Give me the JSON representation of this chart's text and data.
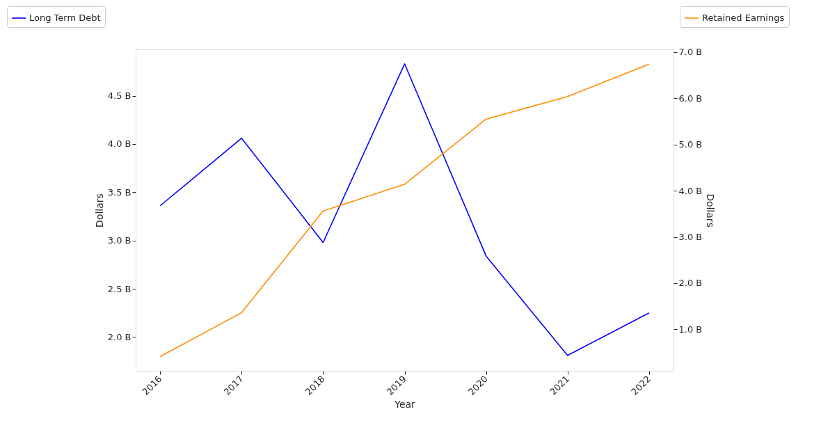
{
  "chart_data": {
    "type": "line",
    "xlabel": "Year",
    "ylabel": "Dollars",
    "y2label": "Dollars",
    "x": [
      2016,
      2017,
      2018,
      2019,
      2020,
      2021,
      2022
    ],
    "xlim": [
      2015.7,
      2022.3
    ],
    "xticks": [
      2016,
      2017,
      2018,
      2019,
      2020,
      2021,
      2022
    ],
    "ylim": [
      1.65,
      4.98
    ],
    "yticks": [
      {
        "value": 2.0,
        "label": "2.0 B"
      },
      {
        "value": 2.5,
        "label": "2.5 B"
      },
      {
        "value": 3.0,
        "label": "3.0 B"
      },
      {
        "value": 3.5,
        "label": "3.5 B"
      },
      {
        "value": 4.0,
        "label": "4.0 B"
      },
      {
        "value": 4.5,
        "label": "4.5 B"
      }
    ],
    "y2lim": [
      0.1,
      7.06
    ],
    "y2ticks": [
      {
        "value": 1.0,
        "label": "1.0 B"
      },
      {
        "value": 2.0,
        "label": "2.0 B"
      },
      {
        "value": 3.0,
        "label": "3.0 B"
      },
      {
        "value": 4.0,
        "label": "4.0 B"
      },
      {
        "value": 5.0,
        "label": "5.0 B"
      },
      {
        "value": 6.0,
        "label": "6.0 B"
      },
      {
        "value": 7.0,
        "label": "7.0 B"
      }
    ],
    "series": [
      {
        "name": "Long Term Debt",
        "color": "#0000ff",
        "values": [
          3.36,
          4.06,
          2.98,
          4.83,
          2.84,
          1.81,
          2.25
        ]
      },
      {
        "name": "Retained Earnings",
        "color": "#ff8c00",
        "axis": "y2",
        "values": [
          0.41,
          1.36,
          3.56,
          4.14,
          5.55,
          6.04,
          6.74
        ]
      }
    ],
    "legend": "top",
    "grid": false,
    "marker": "none",
    "line_style": "solid"
  }
}
